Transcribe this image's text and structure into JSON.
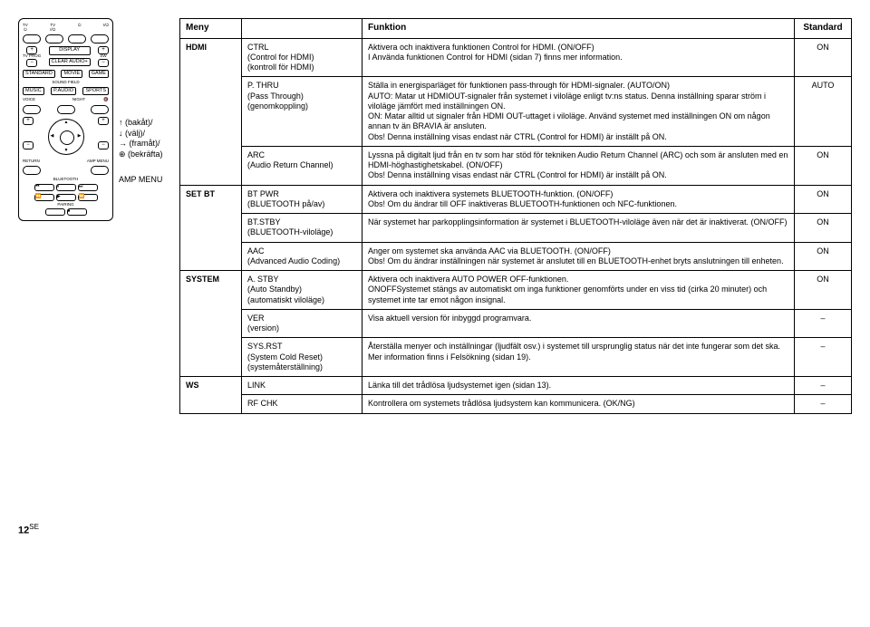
{
  "legend": {
    "up": "↑ (bakåt)/",
    "down": "↓ (välj)/",
    "right": "→ (framåt)/",
    "ok": "⊕ (bekräfta)",
    "amp": "AMP MENU"
  },
  "remote": {
    "top_labels": [
      "TV",
      "TV",
      "",
      ""
    ],
    "prog": "TV PROG",
    "display": "DISPLAY",
    "clear": "CLEAR AUDIO+",
    "sw": "SW",
    "sf_row1": [
      "STANDARD",
      "MOVIE",
      "GAME"
    ],
    "sf_label": "SOUND FIELD",
    "sf_row2": [
      "MUSIC",
      "P.AUDIO",
      "SPORTS"
    ],
    "voice": "VOICE",
    "night": "NIGHT",
    "return": "RETURN",
    "ampmenu": "AMP MENU",
    "bt": "BLUETOOTH",
    "pairing": "PAIRING"
  },
  "table": {
    "headers": [
      "Meny",
      "",
      "Funktion",
      "Standard"
    ],
    "rows": [
      {
        "menu": "HDMI",
        "setting": "CTRL\n(Control for HDMI)\n(kontroll för HDMI)",
        "func": "Aktivera och inaktivera funktionen Control for HDMI. (ON/OFF)\nI Använda funktionen Control for HDMI (sidan 7) finns mer information.",
        "std": "ON",
        "rowspan": 3
      },
      {
        "setting": "P. THRU\n(Pass Through)\n(genomkoppling)",
        "func": "Ställa in energisparläget för funktionen pass-through för HDMI-signaler. (AUTO/ON)\nAUTO: Matar ut HDMIOUT-signaler från systemet i viloläge enligt tv:ns status. Denna inställning sparar ström i viloläge jämfört med inställningen ON.\nON: Matar alltid ut signaler från HDMI OUT-uttaget i viloläge. Använd systemet med inställningen ON om någon annan tv än BRAVIA är ansluten.\nObs! Denna inställning visas endast när CTRL (Control for HDMI) är inställt på ON.",
        "std": "AUTO"
      },
      {
        "setting": "ARC\n(Audio Return Channel)",
        "func": "Lyssna på digitalt ljud från en tv som har stöd för tekniken Audio Return Channel (ARC) och som är ansluten med en HDMI-höghastighetskabel. (ON/OFF)\nObs! Denna inställning visas endast när CTRL (Control for HDMI) är inställt på ON.",
        "std": "ON"
      },
      {
        "menu": "SET BT",
        "setting": "BT PWR\n(BLUETOOTH på/av)",
        "func": "Aktivera och inaktivera systemets BLUETOOTH-funktion. (ON/OFF)\nObs! Om du ändrar till OFF inaktiveras BLUETOOTH-funktionen och NFC-funktionen.",
        "std": "ON",
        "rowspan": 3
      },
      {
        "setting": "BT.STBY\n(BLUETOOTH-viloläge)",
        "func": "När systemet har parkopplingsinformation är systemet i BLUETOOTH-viloläge även när det är inaktiverat. (ON/OFF)",
        "std": "ON"
      },
      {
        "setting": "AAC\n(Advanced Audio Coding)",
        "func": "Anger om systemet ska använda AAC via BLUETOOTH. (ON/OFF)\nObs! Om du ändrar inställningen när systemet är anslutet till en BLUETOOTH-enhet bryts anslutningen till enheten.",
        "std": "ON"
      },
      {
        "menu": "SYSTEM",
        "setting": "A. STBY\n(Auto Standby)\n(automatiskt viloläge)",
        "func": "Aktivera och inaktivera AUTO POWER OFF-funktionen.\nONOFFSystemet stängs av automatiskt om inga funktioner genomförts under en viss tid (cirka 20 minuter) och systemet inte tar emot någon insignal.",
        "std": "ON",
        "rowspan": 3
      },
      {
        "setting": "VER\n(version)",
        "func": "Visa aktuell version för inbyggd programvara.",
        "std": "–"
      },
      {
        "setting": "SYS.RST\n(System Cold Reset)\n(systemåterställning)",
        "func": "Återställa menyer och inställningar (ljudfält osv.) i systemet till ursprunglig status när det inte fungerar som det ska.\nMer information finns i Felsökning (sidan 19).",
        "std": "–"
      },
      {
        "menu": "WS",
        "setting": "LINK",
        "func": "Länka till det trådlösa ljudsystemet igen (sidan 13).",
        "std": "–",
        "rowspan": 2
      },
      {
        "setting": "RF CHK",
        "func": "Kontrollera om systemets trådlösa ljudsystem kan kommunicera. (OK/NG)",
        "std": "–"
      }
    ]
  },
  "footer": "12",
  "footer_sup": "SE"
}
